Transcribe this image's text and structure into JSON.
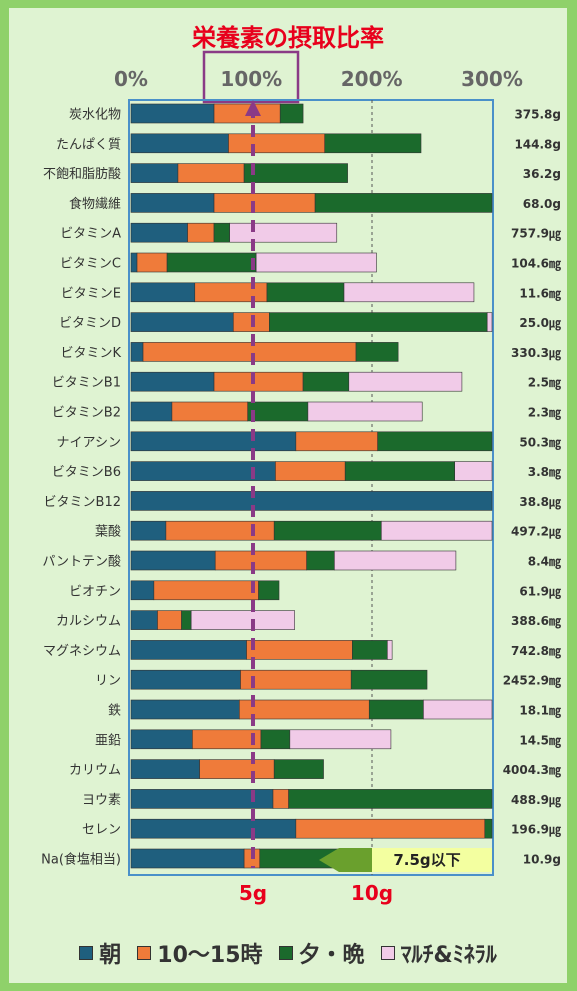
{
  "chart_data": {
    "type": "bar",
    "stacked": true,
    "orientation": "horizontal",
    "title": "栄養素の摂取比率",
    "x_ticks": [
      "0%",
      "100%",
      "200%",
      "300%"
    ],
    "xlim": [
      0,
      300
    ],
    "colors": {
      "morning": "#1f5f7e",
      "midday": "#ef7b3a",
      "evening": "#1b6a2c",
      "supplement": "#f1cbe8"
    },
    "legend": [
      "朝",
      "10〜15時",
      "夕・晩",
      "ﾏﾙﾁ&ﾐﾈﾗﾙ"
    ],
    "categories": [
      "炭水化物",
      "たんぱく質",
      "不飽和脂肪酸",
      "食物繊維",
      "ビタミンA",
      "ビタミンC",
      "ビタミンE",
      "ビタミンD",
      "ビタミンK",
      "ビタミンB1",
      "ビタミンB2",
      "ナイアシン",
      "ビタミンB6",
      "ビタミンB12",
      "葉酸",
      "パントテン酸",
      "ビオチン",
      "カルシウム",
      "マグネシウム",
      "リン",
      "鉄",
      "亜鉛",
      "カリウム",
      "ヨウ素",
      "セレン",
      "Na(食塩相当)"
    ],
    "series": [
      {
        "name": "朝",
        "values": [
          69,
          81,
          39,
          69,
          47,
          5,
          53,
          85,
          10,
          69,
          34,
          137,
          120,
          300,
          29,
          70,
          19,
          22,
          96,
          91,
          90,
          51,
          57,
          118,
          137,
          94
        ]
      },
      {
        "name": "10〜15時",
        "values": [
          55,
          80,
          55,
          84,
          22,
          25,
          60,
          30,
          177,
          74,
          63,
          68,
          58,
          0,
          90,
          76,
          87,
          20,
          88,
          92,
          108,
          57,
          62,
          13,
          157,
          13
        ]
      },
      {
        "name": "夕・晩",
        "values": [
          19,
          80,
          86,
          147,
          13,
          74,
          64,
          181,
          35,
          38,
          50,
          95,
          91,
          0,
          89,
          23,
          17,
          8,
          29,
          63,
          45,
          24,
          41,
          169,
          7,
          93
        ]
      },
      {
        "name": "ﾏﾙﾁ&ﾐﾈﾗﾙ",
        "values": [
          0,
          0,
          0,
          0,
          89,
          100,
          108,
          6,
          0,
          94,
          95,
          0,
          32,
          0,
          94,
          101,
          0,
          86,
          4,
          0,
          59,
          84,
          0,
          0,
          0,
          0
        ]
      }
    ],
    "totals": [
      "375.8g",
      "144.8g",
      "36.2g",
      "68.0g",
      "757.9㎍",
      "104.6㎎",
      "11.6㎎",
      "25.0㎍",
      "330.3㎍",
      "2.5㎎",
      "2.3㎎",
      "50.3㎎",
      "3.8㎎",
      "38.8㎍",
      "497.2㎍",
      "8.4㎎",
      "61.9㎍",
      "388.6㎎",
      "742.8㎎",
      "2452.9㎎",
      "18.1㎎",
      "14.5㎎",
      "4004.3㎎",
      "488.9㎍",
      "196.9㎍",
      "10.9g"
    ],
    "annotations": {
      "sodium_marker_5g": "5g",
      "sodium_marker_10g": "10g",
      "sodium_target": "7.5g以下"
    }
  }
}
